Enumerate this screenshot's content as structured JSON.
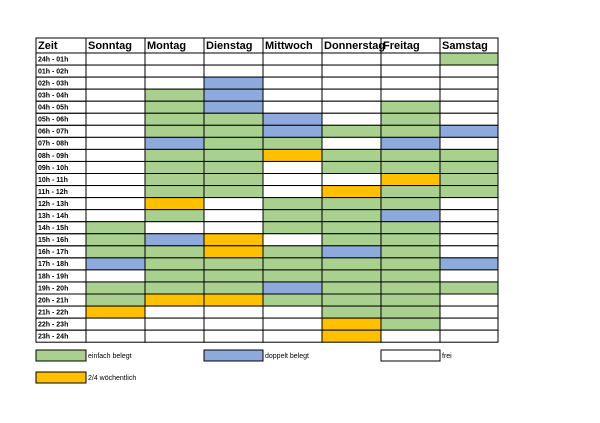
{
  "table": {
    "header": [
      "Zeit",
      "Sonntag",
      "Montag",
      "Dienstag",
      "Mittwoch",
      "Donnerstag",
      "Freitag",
      "Samstag"
    ],
    "rows": [
      {
        "label": "24h - 01h",
        "colors": [
          "#fff",
          "#fff",
          "#fff",
          "#fff",
          "#fff",
          "#fff",
          "#a9d08e"
        ]
      },
      {
        "label": "01h - 02h",
        "colors": [
          "#fff",
          "#fff",
          "#fff",
          "#fff",
          "#fff",
          "#fff",
          "#fff"
        ]
      },
      {
        "label": "02h - 03h",
        "colors": [
          "#fff",
          "#fff",
          "#8ea9db",
          "#fff",
          "#fff",
          "#fff",
          "#fff"
        ]
      },
      {
        "label": "03h - 04h",
        "colors": [
          "#fff",
          "#a9d08e",
          "#8ea9db",
          "#fff",
          "#fff",
          "#fff",
          "#fff"
        ]
      },
      {
        "label": "04h - 05h",
        "colors": [
          "#fff",
          "#a9d08e",
          "#8ea9db",
          "#fff",
          "#fff",
          "#a9d08e",
          "#fff"
        ]
      },
      {
        "label": "05h - 06h",
        "colors": [
          "#fff",
          "#a9d08e",
          "#a9d08e",
          "#8ea9db",
          "#fff",
          "#a9d08e",
          "#fff"
        ]
      },
      {
        "label": "06h - 07h",
        "colors": [
          "#fff",
          "#a9d08e",
          "#a9d08e",
          "#8ea9db",
          "#a9d08e",
          "#a9d08e",
          "#8ea9db"
        ]
      },
      {
        "label": "07h - 08h",
        "colors": [
          "#fff",
          "#8ea9db",
          "#a9d08e",
          "#a9d08e",
          "#fff",
          "#8ea9db",
          "#fff"
        ]
      },
      {
        "label": "08h - 09h",
        "colors": [
          "#fff",
          "#a9d08e",
          "#a9d08e",
          "#ffc000",
          "#a9d08e",
          "#a9d08e",
          "#a9d08e"
        ]
      },
      {
        "label": "09h - 10h",
        "colors": [
          "#fff",
          "#a9d08e",
          "#a9d08e",
          "#fff",
          "#a9d08e",
          "#a9d08e",
          "#a9d08e"
        ]
      },
      {
        "label": "10h - 11h",
        "colors": [
          "#fff",
          "#a9d08e",
          "#a9d08e",
          "#fff",
          "#fff",
          "#ffc000",
          "#a9d08e"
        ]
      },
      {
        "label": "11h - 12h",
        "colors": [
          "#fff",
          "#a9d08e",
          "#a9d08e",
          "#fff",
          "#ffc000",
          "#a9d08e",
          "#a9d08e"
        ]
      },
      {
        "label": "12h - 13h",
        "colors": [
          "#fff",
          "#ffc000",
          "#fff",
          "#a9d08e",
          "#a9d08e",
          "#a9d08e",
          "#fff"
        ]
      },
      {
        "label": "13h - 14h",
        "colors": [
          "#fff",
          "#a9d08e",
          "#fff",
          "#a9d08e",
          "#a9d08e",
          "#8ea9db",
          "#fff"
        ]
      },
      {
        "label": "14h - 15h",
        "colors": [
          "#a9d08e",
          "#fff",
          "#fff",
          "#a9d08e",
          "#a9d08e",
          "#a9d08e",
          "#fff"
        ]
      },
      {
        "label": "15h - 16h",
        "colors": [
          "#a9d08e",
          "#8ea9db",
          "#ffc000",
          "#fff",
          "#a9d08e",
          "#a9d08e",
          "#fff"
        ]
      },
      {
        "label": "16h - 17h",
        "colors": [
          "#a9d08e",
          "#a9d08e",
          "#ffc000",
          "#a9d08e",
          "#8ea9db",
          "#a9d08e",
          "#fff"
        ]
      },
      {
        "label": "17h - 18h",
        "colors": [
          "#8ea9db",
          "#a9d08e",
          "#a9d08e",
          "#a9d08e",
          "#a9d08e",
          "#a9d08e",
          "#8ea9db"
        ]
      },
      {
        "label": "18h - 19h",
        "colors": [
          "#fff",
          "#a9d08e",
          "#a9d08e",
          "#a9d08e",
          "#a9d08e",
          "#a9d08e",
          "#fff"
        ]
      },
      {
        "label": "19h - 20h",
        "colors": [
          "#a9d08e",
          "#a9d08e",
          "#a9d08e",
          "#8ea9db",
          "#a9d08e",
          "#a9d08e",
          "#a9d08e"
        ]
      },
      {
        "label": "20h - 21h",
        "colors": [
          "#a9d08e",
          "#ffc000",
          "#ffc000",
          "#a9d08e",
          "#a9d08e",
          "#a9d08e",
          "#fff"
        ]
      },
      {
        "label": "21h - 22h",
        "colors": [
          "#ffc000",
          "#fff",
          "#fff",
          "#fff",
          "#a9d08e",
          "#a9d08e",
          "#fff"
        ]
      },
      {
        "label": "22h - 23h",
        "colors": [
          "#fff",
          "#fff",
          "#fff",
          "#fff",
          "#ffc000",
          "#a9d08e",
          "#fff"
        ]
      },
      {
        "label": "23h - 24h",
        "colors": [
          "#fff",
          "#fff",
          "#fff",
          "#fff",
          "#ffc000",
          "#fff",
          "#fff"
        ]
      }
    ]
  },
  "legend": [
    {
      "label": "einfach belegt",
      "color": "#a9d08e"
    },
    {
      "label": "doppelt belegt",
      "color": "#8ea9db"
    },
    {
      "label": "frei",
      "color": "#fff"
    },
    {
      "label": "2/4 wöchentlich",
      "color": "#ffc000"
    }
  ]
}
